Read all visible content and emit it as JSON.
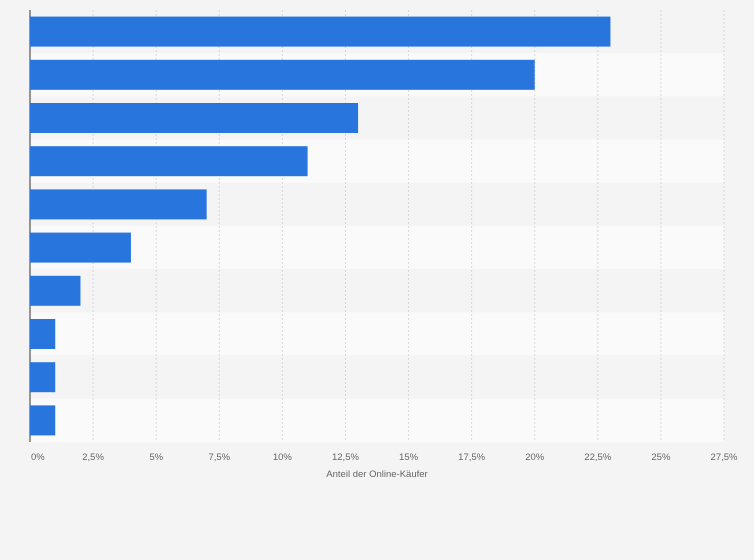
{
  "chart_data": {
    "type": "bar",
    "orientation": "horizontal",
    "title": "",
    "xlabel": "Anteil der Online-Käufer",
    "ylabel": "",
    "categories": [
      "",
      "",
      "",
      "",
      "",
      "",
      "",
      "",
      "",
      ""
    ],
    "values": [
      23,
      20,
      13,
      11,
      7,
      4,
      2,
      1,
      1,
      1
    ],
    "xlim": [
      0,
      27.5
    ],
    "ticks": [
      0,
      2.5,
      5,
      7.5,
      10,
      12.5,
      15,
      17.5,
      20,
      22.5,
      25,
      27.5
    ],
    "tick_labels": [
      "0%",
      "2,5%",
      "5%",
      "7,5%",
      "10%",
      "12,5%",
      "15%",
      "17,5%",
      "20%",
      "22,5%",
      "25%",
      "27,5%"
    ],
    "grid": true,
    "bar_color": "#2876dd",
    "band_colors": [
      "#f4f4f4",
      "#fafafa"
    ]
  }
}
